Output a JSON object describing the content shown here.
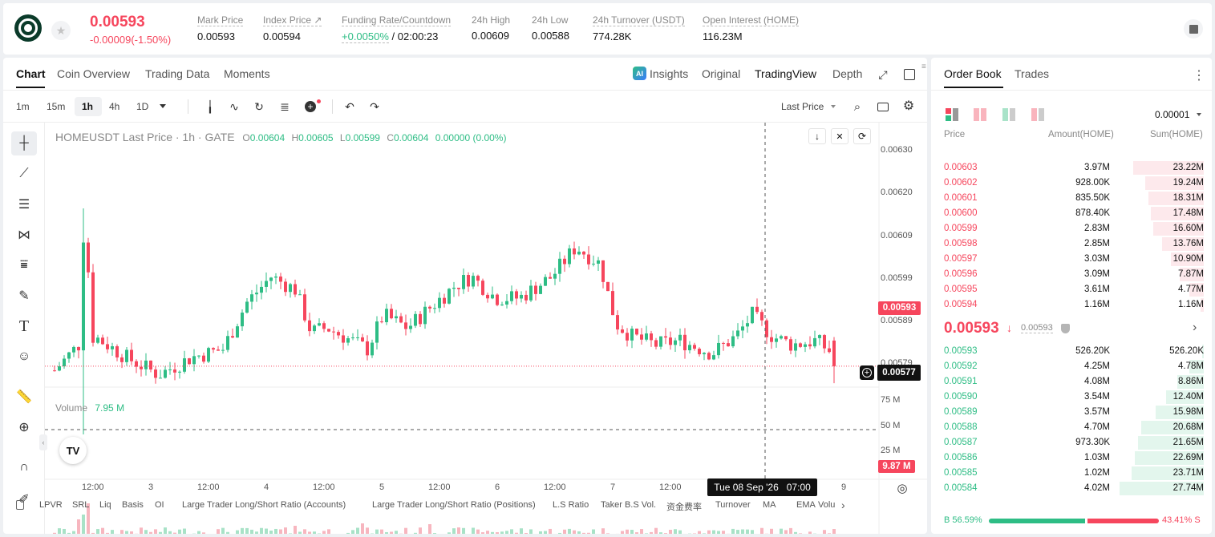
{
  "header": {
    "price": "0.00593",
    "change": "-0.00009(-1.50%)",
    "stats": [
      {
        "label": "Mark Price",
        "value": "0.00593"
      },
      {
        "label": "Index Price ↗",
        "value": "0.00594"
      },
      {
        "label": "Funding Rate/Countdown",
        "value_rate": "+0.0050%",
        "value_rest": "/ 02:00:23"
      },
      {
        "label": "24h High",
        "value": "0.00609"
      },
      {
        "label": "24h Low",
        "value": "0.00588"
      },
      {
        "label": "24h Turnover (USDT)",
        "value": "774.28K"
      },
      {
        "label": "Open Interest (HOME)",
        "value": "116.23M"
      }
    ]
  },
  "chart_tabs": [
    "Chart",
    "Coin Overview",
    "Trading Data",
    "Moments"
  ],
  "view_tabs": {
    "insights": "Insights",
    "original": "Original",
    "tradingview": "TradingView",
    "depth": "Depth"
  },
  "intervals": [
    "1m",
    "15m",
    "1h",
    "4h",
    "1D"
  ],
  "price_type": "Last Price",
  "legend": {
    "symbol": "HOMEUSDT Last Price · 1h · GATE",
    "o_label": "O",
    "o": "0.00604",
    "h_label": "H",
    "h": "0.00605",
    "l_label": "L",
    "l": "0.00599",
    "c_label": "C",
    "c": "0.00604",
    "chg": "0.00000 (0.00%)"
  },
  "volume": {
    "label": "Volume",
    "value": "7.95 M"
  },
  "price_axis": [
    "0.00630",
    "0.00620",
    "0.00609",
    "0.00599",
    "0.00589",
    "0.00579"
  ],
  "vol_axis": [
    "75 M",
    "50 M",
    "25 M"
  ],
  "last_price_tag": "0.00593",
  "cross_price_tag": "0.00577",
  "vol_tag": "9.87 M",
  "time_axis": [
    "12:00",
    "3",
    "12:00",
    "4",
    "12:00",
    "5",
    "12:00",
    "6",
    "12:00",
    "7",
    "12:00",
    "9"
  ],
  "cross_time": "Tue 08 Sep '26   07:00",
  "indicators": [
    "LPVR",
    "SRL",
    "Liq",
    "Basis",
    "OI",
    "Large Trader Long/Short Ratio (Accounts)",
    "Large Trader Long/Short Ratio (Positions)",
    "L.S Ratio",
    "Taker B.S Vol.",
    "资金费率",
    "Turnover",
    "MA",
    "EMA",
    "Volu"
  ],
  "orderbook": {
    "tabs": [
      "Order Book",
      "Trades"
    ],
    "precision": "0.00001",
    "cols": [
      "Price",
      "Amount(HOME)",
      "Sum(HOME)"
    ],
    "asks": [
      {
        "p": "0.00603",
        "a": "3.97M",
        "s": "23.22M",
        "f": 0.836
      },
      {
        "p": "0.00602",
        "a": "928.00K",
        "s": "19.24M",
        "f": 0.693
      },
      {
        "p": "0.00601",
        "a": "835.50K",
        "s": "18.31M",
        "f": 0.66
      },
      {
        "p": "0.00600",
        "a": "878.40K",
        "s": "17.48M",
        "f": 0.63
      },
      {
        "p": "0.00599",
        "a": "2.83M",
        "s": "16.60M",
        "f": 0.598
      },
      {
        "p": "0.00598",
        "a": "2.85M",
        "s": "13.76M",
        "f": 0.496
      },
      {
        "p": "0.00597",
        "a": "3.03M",
        "s": "10.90M",
        "f": 0.393
      },
      {
        "p": "0.00596",
        "a": "3.09M",
        "s": "7.87M",
        "f": 0.284
      },
      {
        "p": "0.00595",
        "a": "3.61M",
        "s": "4.77M",
        "f": 0.172
      },
      {
        "p": "0.00594",
        "a": "1.16M",
        "s": "1.16M",
        "f": 0.042
      }
    ],
    "mid_price": "0.00593",
    "mid_mark": "0.00593",
    "bids": [
      {
        "p": "0.00593",
        "a": "526.20K",
        "s": "526.20K",
        "f": 0.019
      },
      {
        "p": "0.00592",
        "a": "4.25M",
        "s": "4.78M",
        "f": 0.172
      },
      {
        "p": "0.00591",
        "a": "4.08M",
        "s": "8.86M",
        "f": 0.319
      },
      {
        "p": "0.00590",
        "a": "3.54M",
        "s": "12.40M",
        "f": 0.447
      },
      {
        "p": "0.00589",
        "a": "3.57M",
        "s": "15.98M",
        "f": 0.576
      },
      {
        "p": "0.00588",
        "a": "4.70M",
        "s": "20.68M",
        "f": 0.745
      },
      {
        "p": "0.00587",
        "a": "973.30K",
        "s": "21.65M",
        "f": 0.78
      },
      {
        "p": "0.00586",
        "a": "1.03M",
        "s": "22.69M",
        "f": 0.818
      },
      {
        "p": "0.00585",
        "a": "1.02M",
        "s": "23.71M",
        "f": 0.855
      },
      {
        "p": "0.00584",
        "a": "4.02M",
        "s": "27.74M",
        "f": 1.0
      }
    ],
    "buy_pct": "B 56.59%",
    "sell_pct": "43.41% S",
    "buy_ratio": 0.5659
  },
  "colors": {
    "up": "#2ebd85",
    "down": "#f6465d"
  }
}
